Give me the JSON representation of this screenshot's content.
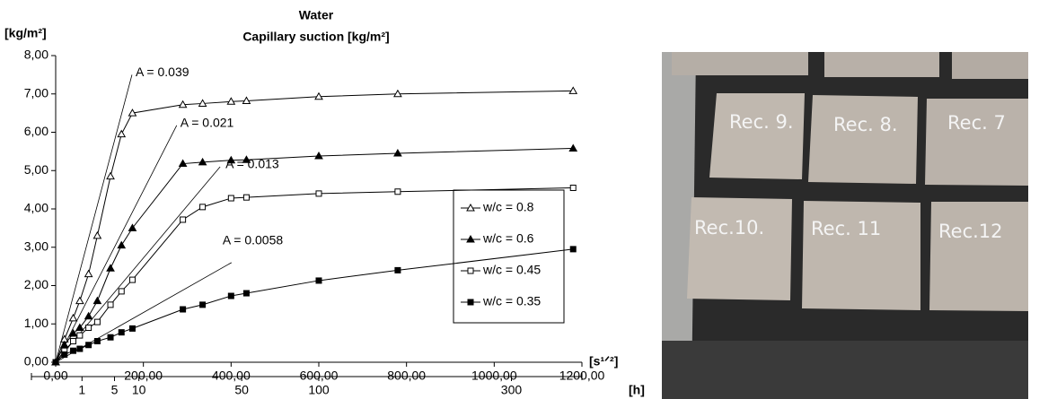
{
  "chart_data": {
    "type": "line",
    "title": "Water",
    "subtitle": "Capillary suction [kg/m²]",
    "y_label": "[kg/m²]",
    "x_label": "[s¹ᐟ²]",
    "x2_label": "[h]",
    "x": [
      0,
      20,
      40,
      55,
      75,
      95,
      125,
      150,
      175,
      290,
      335,
      400,
      435,
      600,
      780,
      1180
    ],
    "series": [
      {
        "name": "w/c = 0.8",
        "color": "#000000",
        "marker": "open-triangle",
        "values": [
          0,
          0.6,
          1.15,
          1.6,
          2.3,
          3.3,
          4.85,
          5.95,
          6.5,
          6.72,
          6.75,
          6.8,
          6.82,
          6.93,
          7.0,
          7.08
        ]
      },
      {
        "name": "w/c = 0.6",
        "color": "#000000",
        "marker": "filled-triangle",
        "values": [
          0,
          0.45,
          0.75,
          0.9,
          1.2,
          1.6,
          2.45,
          3.05,
          3.5,
          5.18,
          5.22,
          5.27,
          5.28,
          5.38,
          5.45,
          5.58
        ]
      },
      {
        "name": "w/c = 0.45",
        "color": "#000000",
        "marker": "open-square",
        "values": [
          0,
          0.3,
          0.55,
          0.7,
          0.9,
          1.05,
          1.5,
          1.85,
          2.15,
          3.72,
          4.05,
          4.28,
          4.3,
          4.4,
          4.45,
          4.55
        ]
      },
      {
        "name": "w/c = 0.35",
        "color": "#000000",
        "marker": "filled-square",
        "values": [
          0,
          0.2,
          0.3,
          0.35,
          0.45,
          0.55,
          0.65,
          0.78,
          0.88,
          1.38,
          1.5,
          1.73,
          1.8,
          2.13,
          2.4,
          2.95
        ]
      }
    ],
    "fit_lines": [
      {
        "label": "A = 0.039",
        "x": [
          0,
          174
        ],
        "y": [
          0,
          7.5
        ]
      },
      {
        "label": "A = 0.021",
        "x": [
          0,
          276
        ],
        "y": [
          0,
          6.18
        ]
      },
      {
        "label": "A = 0.013",
        "x": [
          0,
          375
        ],
        "y": [
          0,
          5.1
        ]
      },
      {
        "label": "A = 0.0058",
        "x": [
          0,
          401
        ],
        "y": [
          0,
          2.6
        ]
      }
    ],
    "xlim": [
      0,
      1200
    ],
    "xticks": [
      {
        "value": 0,
        "label": "0,00"
      },
      {
        "value": 200,
        "label": "200,00"
      },
      {
        "value": 400,
        "label": "400,00"
      },
      {
        "value": 600,
        "label": "600,00"
      },
      {
        "value": 800,
        "label": "800,00"
      },
      {
        "value": 1000,
        "label": "1000,00"
      },
      {
        "value": 1200,
        "label": "1200,00"
      }
    ],
    "ylim": [
      0,
      8
    ],
    "yticks": [
      {
        "value": 0,
        "label": "0,00"
      },
      {
        "value": 1,
        "label": "1,00"
      },
      {
        "value": 2,
        "label": "2,00"
      },
      {
        "value": 3,
        "label": "3,00"
      },
      {
        "value": 4,
        "label": "4,00"
      },
      {
        "value": 5,
        "label": "5,00"
      },
      {
        "value": 6,
        "label": "6,00"
      },
      {
        "value": 7,
        "label": "7,00"
      },
      {
        "value": 8,
        "label": "8,00"
      }
    ],
    "x2ticks": [
      1,
      5,
      10,
      50,
      100,
      300
    ],
    "grid": false,
    "legend": "right"
  },
  "photo": {
    "labels": [
      "Rec. 9.",
      "Rec. 8.",
      "Rec. 7",
      "Rec.10.",
      "Rec. 11",
      "Rec.12"
    ]
  }
}
